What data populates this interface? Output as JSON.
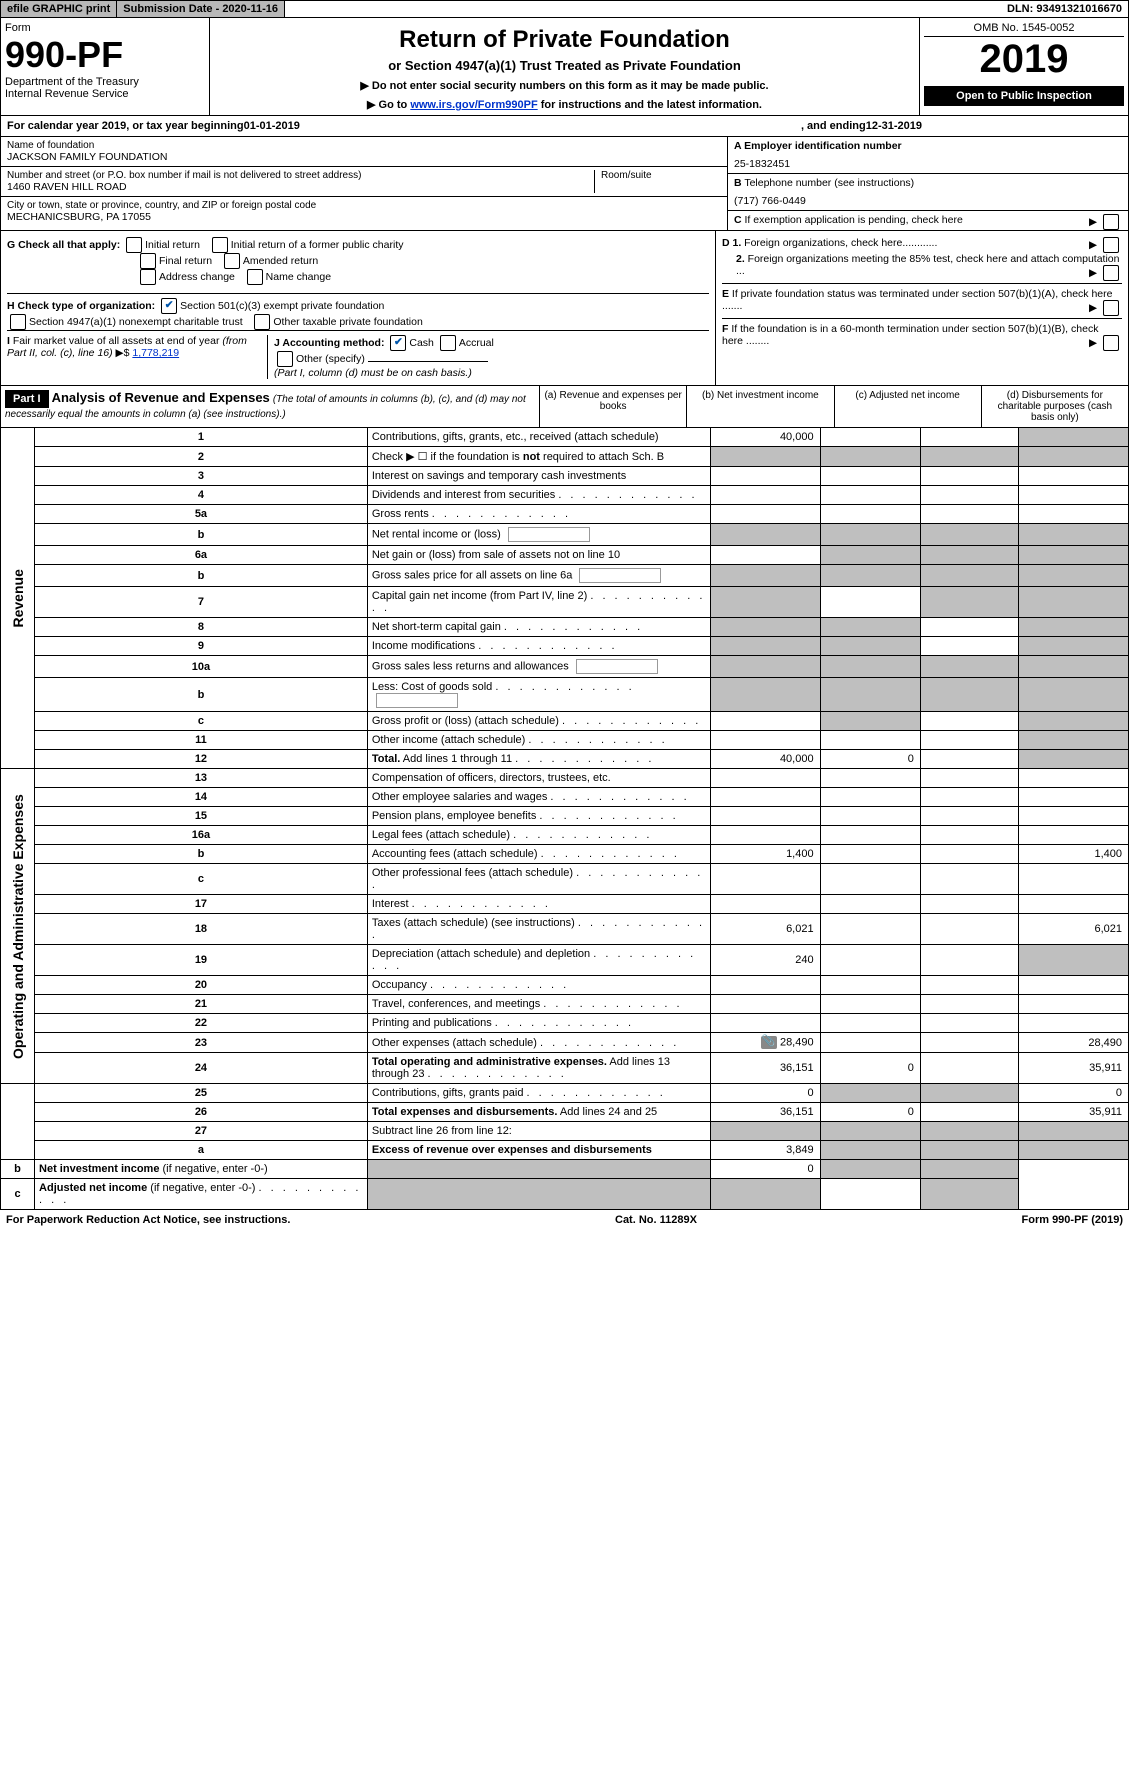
{
  "topbar": {
    "efile": "efile GRAPHIC print",
    "sub_date_label": "Submission Date - 2020-11-16",
    "dln": "DLN: 93491321016670"
  },
  "header": {
    "form_label": "Form",
    "form_number": "990-PF",
    "dept": "Department of the Treasury",
    "irs": "Internal Revenue Service",
    "title": "Return of Private Foundation",
    "subtitle": "or Section 4947(a)(1) Trust Treated as Private Foundation",
    "note1": "▶ Do not enter social security numbers on this form as it may be made public.",
    "note2_prefix": "▶ Go to ",
    "note2_link": "www.irs.gov/Form990PF",
    "note2_suffix": " for instructions and the latest information.",
    "omb": "OMB No. 1545-0052",
    "year": "2019",
    "open": "Open to Public Inspection"
  },
  "calyear": {
    "prefix": "For calendar year 2019, or tax year beginning ",
    "begin": "01-01-2019",
    "mid": ", and ending ",
    "end": "12-31-2019"
  },
  "entity": {
    "name_label": "Name of foundation",
    "name": "JACKSON FAMILY FOUNDATION",
    "street_label": "Number and street (or P.O. box number if mail is not delivered to street address)",
    "room_label": "Room/suite",
    "street": "1460 RAVEN HILL ROAD",
    "city_label": "City or town, state or province, country, and ZIP or foreign postal code",
    "city": "MECHANICSBURG, PA  17055",
    "a_label": "A Employer identification number",
    "a_val": "25-1832451",
    "b_label": "B Telephone number (see instructions)",
    "b_val": "(717) 766-0449",
    "c_label": "C  If exemption application is pending, check here"
  },
  "checks": {
    "g_label": "G Check all that apply:",
    "g_items": [
      "Initial return",
      "Initial return of a former public charity",
      "Final return",
      "Amended return",
      "Address change",
      "Name change"
    ],
    "h_label": "H Check type of organization:",
    "h_items": [
      "Section 501(c)(3) exempt private foundation",
      "Section 4947(a)(1) nonexempt charitable trust",
      "Other taxable private foundation"
    ],
    "i_label": "I Fair market value of all assets at end of year (from Part II, col. (c), line 16) ▶$",
    "i_val": "1,778,219",
    "j_label": "J Accounting method:",
    "j_cash": "Cash",
    "j_accrual": "Accrual",
    "j_other": "Other (specify)",
    "j_note": "(Part I, column (d) must be on cash basis.)",
    "d1": "D 1. Foreign organizations, check here............",
    "d2": "2. Foreign organizations meeting the 85% test, check here and attach computation ...",
    "e": "E  If private foundation status was terminated under section 507(b)(1)(A), check here .......",
    "f": "F  If the foundation is in a 60-month termination under section 507(b)(1)(B), check here ........"
  },
  "part1": {
    "label": "Part I",
    "title": "Analysis of Revenue and Expenses",
    "title_note": "(The total of amounts in columns (b), (c), and (d) may not necessarily equal the amounts in column (a) (see instructions).)",
    "cols": {
      "a": "(a) Revenue and expenses per books",
      "b": "(b) Net investment income",
      "c": "(c) Adjusted net income",
      "d": "(d) Disbursements for charitable purposes (cash basis only)"
    }
  },
  "rows": [
    {
      "n": "1",
      "desc": "Contributions, gifts, grants, etc., received (attach schedule)",
      "a": "40,000",
      "d_grey": true
    },
    {
      "n": "2",
      "desc": "Check ▶ ☐ if the foundation is <b>not</b> required to attach Sch. B",
      "all_grey": true,
      "html": true
    },
    {
      "n": "3",
      "desc": "Interest on savings and temporary cash investments"
    },
    {
      "n": "4",
      "desc": "Dividends and interest from securities",
      "dots": true
    },
    {
      "n": "5a",
      "desc": "Gross rents",
      "dots": true
    },
    {
      "n": "b",
      "desc": "Net rental income or (loss)",
      "inline_box": true,
      "all_grey": true
    },
    {
      "n": "6a",
      "desc": "Net gain or (loss) from sale of assets not on line 10",
      "bcd_grey": true
    },
    {
      "n": "b",
      "desc": "Gross sales price for all assets on line 6a",
      "inline_box": true,
      "all_grey": true
    },
    {
      "n": "7",
      "desc": "Capital gain net income (from Part IV, line 2)",
      "dots": true,
      "a_grey": true,
      "cd_grey": true
    },
    {
      "n": "8",
      "desc": "Net short-term capital gain",
      "dots": true,
      "abd_grey": true
    },
    {
      "n": "9",
      "desc": "Income modifications",
      "dots": true,
      "abd_grey": true
    },
    {
      "n": "10a",
      "desc": "Gross sales less returns and allowances",
      "inline_box": true,
      "all_grey": true
    },
    {
      "n": "b",
      "desc": "Less: Cost of goods sold",
      "dots": true,
      "inline_box": true,
      "all_grey": true
    },
    {
      "n": "c",
      "desc": "Gross profit or (loss) (attach schedule)",
      "dots": true,
      "bd_grey": true
    },
    {
      "n": "11",
      "desc": "Other income (attach schedule)",
      "dots": true,
      "d_grey": true
    },
    {
      "n": "12",
      "desc": "<b>Total.</b> Add lines 1 through 11",
      "dots": true,
      "a": "40,000",
      "b": "0",
      "d_grey": true,
      "html": true
    },
    {
      "n": "13",
      "desc": "Compensation of officers, directors, trustees, etc."
    },
    {
      "n": "14",
      "desc": "Other employee salaries and wages",
      "dots": true
    },
    {
      "n": "15",
      "desc": "Pension plans, employee benefits",
      "dots": true
    },
    {
      "n": "16a",
      "desc": "Legal fees (attach schedule)",
      "dots": true
    },
    {
      "n": "b",
      "desc": "Accounting fees (attach schedule)",
      "dots": true,
      "a": "1,400",
      "d": "1,400"
    },
    {
      "n": "c",
      "desc": "Other professional fees (attach schedule)",
      "dots": true
    },
    {
      "n": "17",
      "desc": "Interest",
      "dots": true
    },
    {
      "n": "18",
      "desc": "Taxes (attach schedule) (see instructions)",
      "dots": true,
      "a": "6,021",
      "d": "6,021"
    },
    {
      "n": "19",
      "desc": "Depreciation (attach schedule) and depletion",
      "dots": true,
      "a": "240",
      "d_grey": true
    },
    {
      "n": "20",
      "desc": "Occupancy",
      "dots": true
    },
    {
      "n": "21",
      "desc": "Travel, conferences, and meetings",
      "dots": true
    },
    {
      "n": "22",
      "desc": "Printing and publications",
      "dots": true
    },
    {
      "n": "23",
      "desc": "Other expenses (attach schedule)",
      "dots": true,
      "a": "28,490",
      "d": "28,490",
      "attach": true
    },
    {
      "n": "24",
      "desc": "<b>Total operating and administrative expenses.</b> Add lines 13 through 23",
      "dots": true,
      "a": "36,151",
      "b": "0",
      "d": "35,911",
      "html": true
    },
    {
      "n": "25",
      "desc": "Contributions, gifts, grants paid",
      "dots": true,
      "a": "0",
      "bc_grey": true,
      "d": "0"
    },
    {
      "n": "26",
      "desc": "<b>Total expenses and disbursements.</b> Add lines 24 and 25",
      "a": "36,151",
      "b": "0",
      "d": "35,911",
      "html": true
    },
    {
      "n": "27",
      "desc": "Subtract line 26 from line 12:",
      "all_grey": true
    },
    {
      "n": "a",
      "desc": "<b>Excess of revenue over expenses and disbursements</b>",
      "a": "3,849",
      "bcd_grey": true,
      "html": true
    },
    {
      "n": "b",
      "desc": "<b>Net investment income</b> (if negative, enter -0-)",
      "a_grey": true,
      "b": "0",
      "cd_grey": true,
      "html": true
    },
    {
      "n": "c",
      "desc": "<b>Adjusted net income</b> (if negative, enter -0-)",
      "dots": true,
      "abd_grey": true,
      "html": true
    }
  ],
  "sidelabels": {
    "revenue": "Revenue",
    "expenses": "Operating and Administrative Expenses"
  },
  "footer": {
    "left": "For Paperwork Reduction Act Notice, see instructions.",
    "mid": "Cat. No. 11289X",
    "right": "Form 990-PF (2019)"
  },
  "colors": {
    "grey_bg": "#bfbfbf",
    "btn_bg": "#b8b8b8",
    "link": "#0033cc"
  }
}
